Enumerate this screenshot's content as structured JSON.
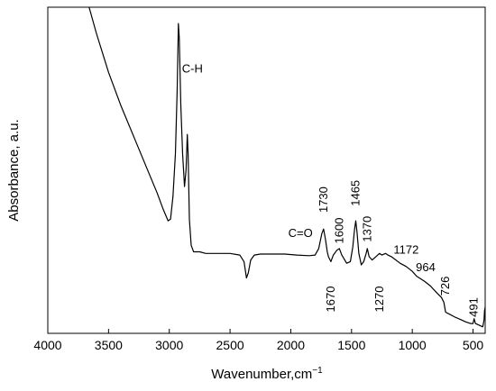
{
  "chart_data": {
    "type": "line",
    "xlabel": "Wavenumber,cm",
    "xlabel_sup": "−1",
    "ylabel": "Absorbance, a.u.",
    "xlim": [
      4000,
      400
    ],
    "x_reversed": true,
    "ylim": [
      0,
      1
    ],
    "y_ticks_labeled": false,
    "x_ticks": [
      4000,
      3500,
      3000,
      2500,
      2000,
      1500,
      1000,
      500
    ],
    "x_tick_labels": [
      "4000",
      "3500",
      "3000",
      "2500",
      "2000",
      "1500",
      "1000",
      "500"
    ],
    "line_color": "#000000",
    "series": [
      {
        "points": [
          [
            3660,
            1.02
          ],
          [
            3600,
            0.92
          ],
          [
            3500,
            0.8
          ],
          [
            3400,
            0.7
          ],
          [
            3300,
            0.61
          ],
          [
            3200,
            0.52
          ],
          [
            3100,
            0.43
          ],
          [
            3050,
            0.38
          ],
          [
            3010,
            0.345
          ],
          [
            2990,
            0.35
          ],
          [
            2970,
            0.42
          ],
          [
            2950,
            0.55
          ],
          [
            2935,
            0.75
          ],
          [
            2925,
            0.95
          ],
          [
            2918,
            0.905
          ],
          [
            2905,
            0.7
          ],
          [
            2890,
            0.55
          ],
          [
            2875,
            0.45
          ],
          [
            2862,
            0.5
          ],
          [
            2852,
            0.61
          ],
          [
            2845,
            0.55
          ],
          [
            2835,
            0.35
          ],
          [
            2820,
            0.27
          ],
          [
            2800,
            0.25
          ],
          [
            2750,
            0.25
          ],
          [
            2700,
            0.245
          ],
          [
            2600,
            0.245
          ],
          [
            2500,
            0.245
          ],
          [
            2420,
            0.24
          ],
          [
            2385,
            0.22
          ],
          [
            2365,
            0.17
          ],
          [
            2350,
            0.185
          ],
          [
            2330,
            0.225
          ],
          [
            2300,
            0.24
          ],
          [
            2250,
            0.243
          ],
          [
            2150,
            0.243
          ],
          [
            2050,
            0.243
          ],
          [
            1950,
            0.24
          ],
          [
            1850,
            0.238
          ],
          [
            1800,
            0.24
          ],
          [
            1770,
            0.26
          ],
          [
            1745,
            0.305
          ],
          [
            1730,
            0.32
          ],
          [
            1715,
            0.29
          ],
          [
            1700,
            0.25
          ],
          [
            1690,
            0.235
          ],
          [
            1670,
            0.22
          ],
          [
            1650,
            0.24
          ],
          [
            1620,
            0.255
          ],
          [
            1600,
            0.26
          ],
          [
            1580,
            0.24
          ],
          [
            1540,
            0.215
          ],
          [
            1510,
            0.22
          ],
          [
            1490,
            0.265
          ],
          [
            1475,
            0.32
          ],
          [
            1465,
            0.345
          ],
          [
            1455,
            0.31
          ],
          [
            1440,
            0.245
          ],
          [
            1420,
            0.21
          ],
          [
            1400,
            0.22
          ],
          [
            1380,
            0.245
          ],
          [
            1370,
            0.26
          ],
          [
            1355,
            0.235
          ],
          [
            1330,
            0.225
          ],
          [
            1300,
            0.235
          ],
          [
            1270,
            0.245
          ],
          [
            1250,
            0.24
          ],
          [
            1220,
            0.245
          ],
          [
            1200,
            0.24
          ],
          [
            1172,
            0.235
          ],
          [
            1100,
            0.215
          ],
          [
            1050,
            0.205
          ],
          [
            1000,
            0.19
          ],
          [
            964,
            0.175
          ],
          [
            900,
            0.16
          ],
          [
            850,
            0.145
          ],
          [
            800,
            0.125
          ],
          [
            760,
            0.11
          ],
          [
            740,
            0.095
          ],
          [
            726,
            0.065
          ],
          [
            700,
            0.06
          ],
          [
            650,
            0.05
          ],
          [
            600,
            0.042
          ],
          [
            560,
            0.035
          ],
          [
            520,
            0.03
          ],
          [
            500,
            0.03
          ],
          [
            491,
            0.045
          ],
          [
            480,
            0.03
          ],
          [
            450,
            0.025
          ],
          [
            420,
            0.02
          ],
          [
            410,
            0.04
          ],
          [
            405,
            0.07
          ],
          [
            400,
            0.08
          ]
        ]
      }
    ],
    "annotations": [
      {
        "text": "C-H",
        "x": 2810,
        "y": 0.8,
        "rotated": false
      },
      {
        "text": "C=O",
        "x": 1920,
        "y": 0.295,
        "rotated": false
      },
      {
        "text": "1730",
        "x": 1730,
        "y": 0.41,
        "rotated": true
      },
      {
        "text": "1600",
        "x": 1600,
        "y": 0.315,
        "rotated": true
      },
      {
        "text": "1465",
        "x": 1465,
        "y": 0.43,
        "rotated": true
      },
      {
        "text": "1370",
        "x": 1370,
        "y": 0.32,
        "rotated": true
      },
      {
        "text": "1670",
        "x": 1670,
        "y": 0.105,
        "rotated": true
      },
      {
        "text": "1270",
        "x": 1270,
        "y": 0.105,
        "rotated": true
      },
      {
        "text": "1172",
        "x": 1050,
        "y": 0.245,
        "rotated": false
      },
      {
        "text": "964",
        "x": 890,
        "y": 0.19,
        "rotated": false
      },
      {
        "text": "726",
        "x": 726,
        "y": 0.145,
        "rotated": true
      },
      {
        "text": "491",
        "x": 491,
        "y": 0.08,
        "rotated": true
      }
    ]
  }
}
